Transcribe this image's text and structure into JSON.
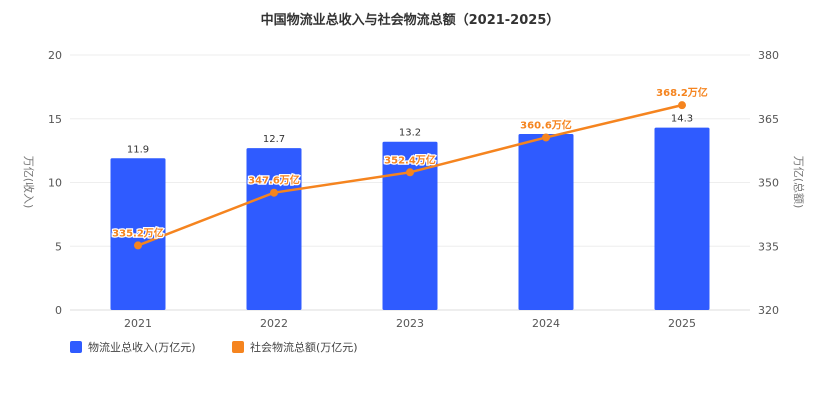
{
  "chart_data": {
    "type": "bar",
    "title": "中国物流业总收入与社会物流总额（2021-2025）",
    "categories": [
      "2021",
      "2022",
      "2023",
      "2024",
      "2025"
    ],
    "y_left": {
      "label": "万亿(收入)",
      "ticks": [
        "0",
        "5",
        "10",
        "15",
        "20"
      ],
      "range": [
        0,
        20
      ]
    },
    "y_right": {
      "label": "万亿(总额)",
      "ticks": [
        "320",
        "335",
        "350",
        "365",
        "380"
      ],
      "range": [
        320,
        380
      ]
    },
    "series": [
      {
        "name": "物流业总收入(万亿元)",
        "type": "bar",
        "axis": "left",
        "color": "#2f5bff",
        "values": [
          11.9,
          12.7,
          13.2,
          13.8,
          14.3
        ],
        "labels": [
          "11.9",
          "12.7",
          "13.2",
          "",
          "14.3"
        ]
      },
      {
        "name": "社会物流总额(万亿元)",
        "type": "line",
        "axis": "right",
        "color": "#f5841f",
        "values": [
          335.2,
          347.6,
          352.4,
          360.6,
          368.2
        ],
        "labels": [
          "335.2万亿",
          "347.6万亿",
          "352.4万亿",
          "360.6万亿",
          "368.2万亿"
        ]
      }
    ],
    "grid": true,
    "legend": "bottom-left"
  }
}
